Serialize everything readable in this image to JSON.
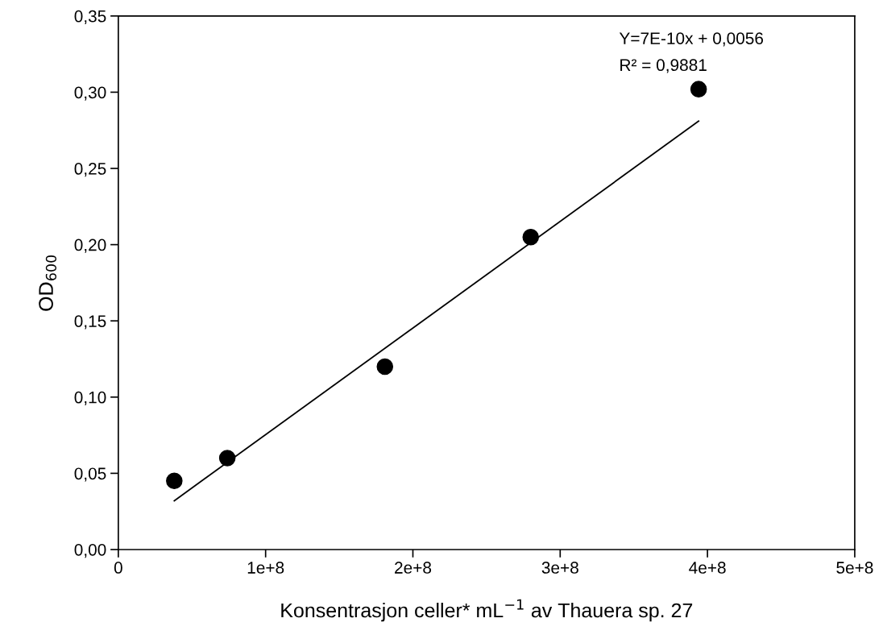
{
  "chart_data": {
    "type": "scatter",
    "xlabel": "Konsentrasjon celler* mL$^{−1}$ av Thauera sp. 27",
    "ylabel": "OD$_{600}$",
    "annotations": [
      "Y=7E-10x + 0,0056",
      "R² = 0,9881"
    ],
    "series": [
      {
        "color": "#000000",
        "marker": "circle",
        "x": [
          38000000,
          74000000,
          181000000,
          280000000,
          394000000
        ],
        "values": [
          0.045,
          0.06,
          0.12,
          0.205,
          0.302
        ]
      },
      {
        "type": "line",
        "color": "#000000",
        "marker": "none",
        "line_style": "solid",
        "x": [
          38000000,
          394000000
        ],
        "values": [
          0.032,
          0.281
        ]
      }
    ],
    "xlim": [
      0,
      500000000
    ],
    "xticks": [
      0,
      {
        "value": 100000000,
        "label": "1e+8"
      },
      {
        "value": 200000000,
        "label": "2e+8"
      },
      {
        "value": 300000000,
        "label": "3e+8"
      },
      {
        "value": 400000000,
        "label": "4e+8"
      },
      {
        "value": 500000000,
        "label": "5e+8"
      }
    ],
    "ylim": [
      0,
      0.35
    ],
    "yticks": [
      {
        "value": 0,
        "label": "0,00"
      },
      {
        "value": 0.05,
        "label": "0,05"
      },
      {
        "value": 0.1,
        "label": "0,10"
      },
      {
        "value": 0.15,
        "label": "0,15"
      },
      {
        "value": 0.2,
        "label": "0,20"
      },
      {
        "value": 0.25,
        "label": "0,25"
      },
      {
        "value": 0.3,
        "label": "0,30"
      },
      {
        "value": 0.35,
        "label": "0,35"
      }
    ],
    "grid": false,
    "legend": false
  }
}
